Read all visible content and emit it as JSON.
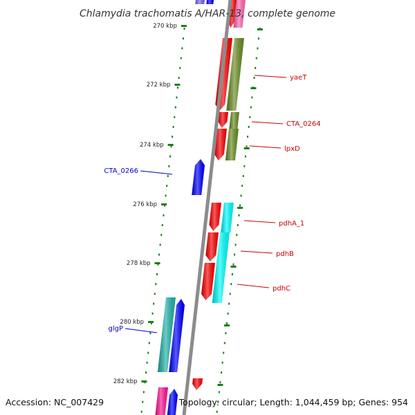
{
  "title": "Chlamydia trachomatis A/HAR-13, complete genome",
  "footer": {
    "accession": "Accession: NC_007429",
    "summary": "Topology: circular; Length: 1,044,459 bp; Genes: 954"
  },
  "colors": {
    "backbone": "#8c8c8c",
    "tick": "#1a7f1a",
    "label_forward": "#cc0000",
    "label_reverse": "#0000cc",
    "red": "#ff0000",
    "blue": "#0000ff",
    "olive": "#6b8e23",
    "cyan": "#00ffff",
    "teal": "#20b2aa",
    "magenta": "#ff1493",
    "pink": "#ff69b4",
    "purple": "#7b68ee"
  },
  "ticks": [
    {
      "label": "270 kbp"
    },
    {
      "label": "272 kbp"
    },
    {
      "label": "274 kbp"
    },
    {
      "label": "276 kbp"
    },
    {
      "label": "278 kbp"
    },
    {
      "label": "280 kbp"
    },
    {
      "label": "282 kbp"
    }
  ],
  "gene_labels": [
    {
      "text": "yaeT",
      "strand": "forward"
    },
    {
      "text": "CTA_0264",
      "strand": "forward"
    },
    {
      "text": "lpxD",
      "strand": "forward"
    },
    {
      "text": "CTA_0266",
      "strand": "reverse"
    },
    {
      "text": "pdhA_1",
      "strand": "forward"
    },
    {
      "text": "pdhB",
      "strand": "forward"
    },
    {
      "text": "pdhC",
      "strand": "forward"
    },
    {
      "text": "glgP",
      "strand": "reverse"
    }
  ]
}
